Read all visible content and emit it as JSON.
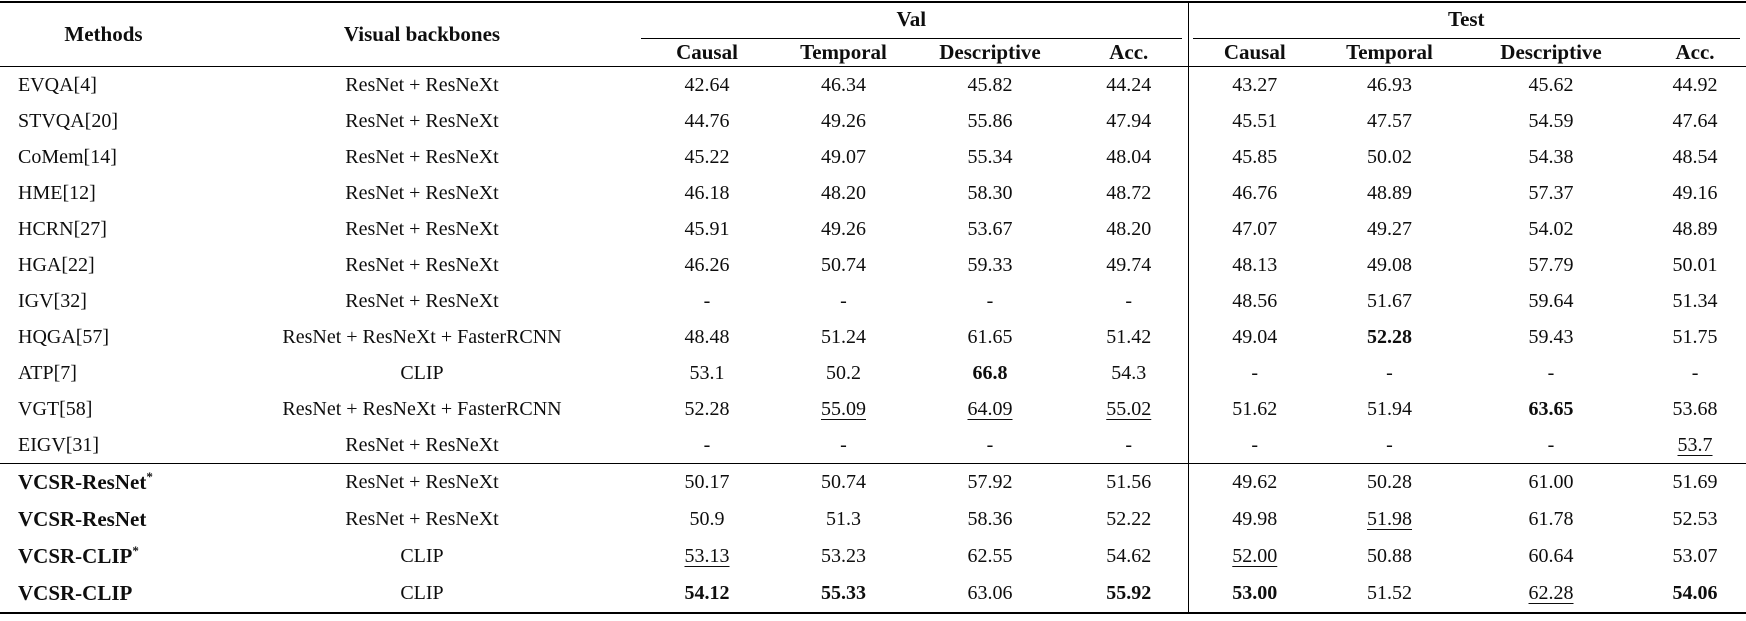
{
  "table": {
    "headers": {
      "methods": "Methods",
      "backbones": "Visual backbones",
      "groups": [
        "Val",
        "Test"
      ],
      "subcolumns": [
        "Causal",
        "Temporal",
        "Descriptive",
        "Acc."
      ]
    },
    "baseline_rows": [
      {
        "method": "EVQA[4]",
        "backbone": "ResNet + ResNeXt",
        "cells": [
          {
            "v": "42.64"
          },
          {
            "v": "46.34"
          },
          {
            "v": "45.82"
          },
          {
            "v": "44.24"
          },
          {
            "v": "43.27"
          },
          {
            "v": "46.93"
          },
          {
            "v": "45.62"
          },
          {
            "v": "44.92"
          }
        ]
      },
      {
        "method": "STVQA[20]",
        "backbone": "ResNet + ResNeXt",
        "cells": [
          {
            "v": "44.76"
          },
          {
            "v": "49.26"
          },
          {
            "v": "55.86"
          },
          {
            "v": "47.94"
          },
          {
            "v": "45.51"
          },
          {
            "v": "47.57"
          },
          {
            "v": "54.59"
          },
          {
            "v": "47.64"
          }
        ]
      },
      {
        "method": "CoMem[14]",
        "backbone": "ResNet + ResNeXt",
        "cells": [
          {
            "v": "45.22"
          },
          {
            "v": "49.07"
          },
          {
            "v": "55.34"
          },
          {
            "v": "48.04"
          },
          {
            "v": "45.85"
          },
          {
            "v": "50.02"
          },
          {
            "v": "54.38"
          },
          {
            "v": "48.54"
          }
        ]
      },
      {
        "method": "HME[12]",
        "backbone": "ResNet + ResNeXt",
        "cells": [
          {
            "v": "46.18"
          },
          {
            "v": "48.20"
          },
          {
            "v": "58.30"
          },
          {
            "v": "48.72"
          },
          {
            "v": "46.76"
          },
          {
            "v": "48.89"
          },
          {
            "v": "57.37"
          },
          {
            "v": "49.16"
          }
        ]
      },
      {
        "method": "HCRN[27]",
        "backbone": "ResNet + ResNeXt",
        "cells": [
          {
            "v": "45.91"
          },
          {
            "v": "49.26"
          },
          {
            "v": "53.67"
          },
          {
            "v": "48.20"
          },
          {
            "v": "47.07"
          },
          {
            "v": "49.27"
          },
          {
            "v": "54.02"
          },
          {
            "v": "48.89"
          }
        ]
      },
      {
        "method": "HGA[22]",
        "backbone": "ResNet + ResNeXt",
        "cells": [
          {
            "v": "46.26"
          },
          {
            "v": "50.74"
          },
          {
            "v": "59.33"
          },
          {
            "v": "49.74"
          },
          {
            "v": "48.13"
          },
          {
            "v": "49.08"
          },
          {
            "v": "57.79"
          },
          {
            "v": "50.01"
          }
        ]
      },
      {
        "method": "IGV[32]",
        "backbone": "ResNet + ResNeXt",
        "cells": [
          {
            "v": "-"
          },
          {
            "v": "-"
          },
          {
            "v": "-"
          },
          {
            "v": "-"
          },
          {
            "v": "48.56"
          },
          {
            "v": "51.67"
          },
          {
            "v": "59.64"
          },
          {
            "v": "51.34"
          }
        ]
      },
      {
        "method": "HQGA[57]",
        "backbone": "ResNet + ResNeXt + FasterRCNN",
        "cells": [
          {
            "v": "48.48"
          },
          {
            "v": "51.24"
          },
          {
            "v": "61.65"
          },
          {
            "v": "51.42"
          },
          {
            "v": "49.04"
          },
          {
            "v": "52.28",
            "f": "bold"
          },
          {
            "v": "59.43"
          },
          {
            "v": "51.75"
          }
        ]
      },
      {
        "method": "ATP[7]",
        "backbone": "CLIP",
        "cells": [
          {
            "v": "53.1"
          },
          {
            "v": "50.2"
          },
          {
            "v": "66.8",
            "f": "bold"
          },
          {
            "v": "54.3"
          },
          {
            "v": "-"
          },
          {
            "v": "-"
          },
          {
            "v": "-"
          },
          {
            "v": "-"
          }
        ]
      },
      {
        "method": "VGT[58]",
        "backbone": "ResNet + ResNeXt + FasterRCNN",
        "cells": [
          {
            "v": "52.28"
          },
          {
            "v": "55.09",
            "f": "underline"
          },
          {
            "v": "64.09",
            "f": "underline"
          },
          {
            "v": "55.02",
            "f": "underline"
          },
          {
            "v": "51.62"
          },
          {
            "v": "51.94"
          },
          {
            "v": "63.65",
            "f": "bold"
          },
          {
            "v": "53.68"
          }
        ]
      },
      {
        "method": "EIGV[31]",
        "backbone": "ResNet + ResNeXt",
        "cells": [
          {
            "v": "-"
          },
          {
            "v": "-"
          },
          {
            "v": "-"
          },
          {
            "v": "-"
          },
          {
            "v": "-"
          },
          {
            "v": "-"
          },
          {
            "v": "-"
          },
          {
            "v": "53.7",
            "f": "underline"
          }
        ]
      }
    ],
    "vcsr_rows": [
      {
        "method": "VCSR-ResNet*",
        "method_bold": true,
        "backbone": "ResNet + ResNeXt",
        "cells": [
          {
            "v": "50.17"
          },
          {
            "v": "50.74"
          },
          {
            "v": "57.92"
          },
          {
            "v": "51.56"
          },
          {
            "v": "49.62"
          },
          {
            "v": "50.28"
          },
          {
            "v": "61.00"
          },
          {
            "v": "51.69"
          }
        ]
      },
      {
        "method": "VCSR-ResNet",
        "method_bold": true,
        "backbone": "ResNet + ResNeXt",
        "cells": [
          {
            "v": "50.9"
          },
          {
            "v": "51.3"
          },
          {
            "v": "58.36"
          },
          {
            "v": "52.22"
          },
          {
            "v": "49.98"
          },
          {
            "v": "51.98",
            "f": "underline"
          },
          {
            "v": "61.78"
          },
          {
            "v": "52.53"
          }
        ]
      },
      {
        "method": "VCSR-CLIP*",
        "method_bold": true,
        "backbone": "CLIP",
        "cells": [
          {
            "v": "53.13",
            "f": "underline"
          },
          {
            "v": "53.23"
          },
          {
            "v": "62.55"
          },
          {
            "v": "54.62"
          },
          {
            "v": "52.00",
            "f": "underline"
          },
          {
            "v": "50.88"
          },
          {
            "v": "60.64"
          },
          {
            "v": "53.07"
          }
        ]
      },
      {
        "method": "VCSR-CLIP",
        "method_bold": true,
        "backbone": "CLIP",
        "cells": [
          {
            "v": "54.12",
            "f": "bold"
          },
          {
            "v": "55.33",
            "f": "bold"
          },
          {
            "v": "63.06"
          },
          {
            "v": "55.92",
            "f": "bold"
          },
          {
            "v": "53.00",
            "f": "bold"
          },
          {
            "v": "51.52"
          },
          {
            "v": "62.28",
            "f": "underline"
          },
          {
            "v": "54.06",
            "f": "bold"
          }
        ]
      }
    ],
    "colors": {
      "text": "#0e0e0e",
      "rule": "#000000",
      "background": "#ffffff"
    }
  }
}
